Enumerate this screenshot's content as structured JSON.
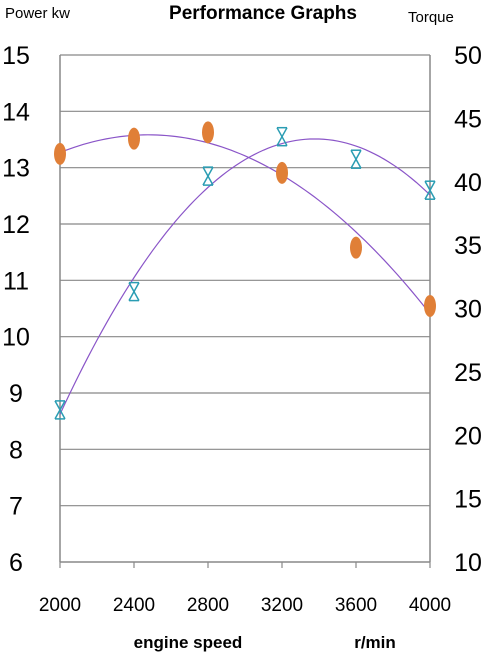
{
  "chart_data": {
    "type": "scatter",
    "title": "Performance Graphs",
    "left_axis_label": "Power  kw",
    "right_axis_label": "Torque",
    "xlabel": "engine speed",
    "xunit": "r/min",
    "x_ticks": [
      2000,
      2400,
      2800,
      3200,
      3600,
      4000
    ],
    "xlim": [
      2000,
      4000
    ],
    "y_left_ticks": [
      6,
      7,
      8,
      9,
      10,
      11,
      12,
      13,
      14,
      15
    ],
    "ylim_left": [
      6,
      15
    ],
    "y_right_ticks": [
      10,
      15,
      20,
      25,
      30,
      35,
      40,
      45,
      50
    ],
    "ylim_right": [
      10,
      50
    ],
    "grid": "horizontal",
    "series": [
      {
        "marker": "star",
        "axis": "left",
        "color": "#2a9db3",
        "points": [
          {
            "x": 2000,
            "y": 8.7
          },
          {
            "x": 2400,
            "y": 10.8
          },
          {
            "x": 2800,
            "y": 12.85
          },
          {
            "x": 3200,
            "y": 13.55
          },
          {
            "x": 3600,
            "y": 13.15
          },
          {
            "x": 4000,
            "y": 12.6
          }
        ]
      },
      {
        "marker": "ellipse",
        "axis": "right",
        "color": "#e07f37",
        "points": [
          {
            "x": 2000,
            "y": 42.2
          },
          {
            "x": 2400,
            "y": 43.4
          },
          {
            "x": 2800,
            "y": 43.9
          },
          {
            "x": 3200,
            "y": 40.7
          },
          {
            "x": 3600,
            "y": 34.8
          },
          {
            "x": 4000,
            "y": 30.2
          }
        ]
      }
    ],
    "trendline_color": "#8a55c8",
    "gridline_color": "#888888"
  }
}
